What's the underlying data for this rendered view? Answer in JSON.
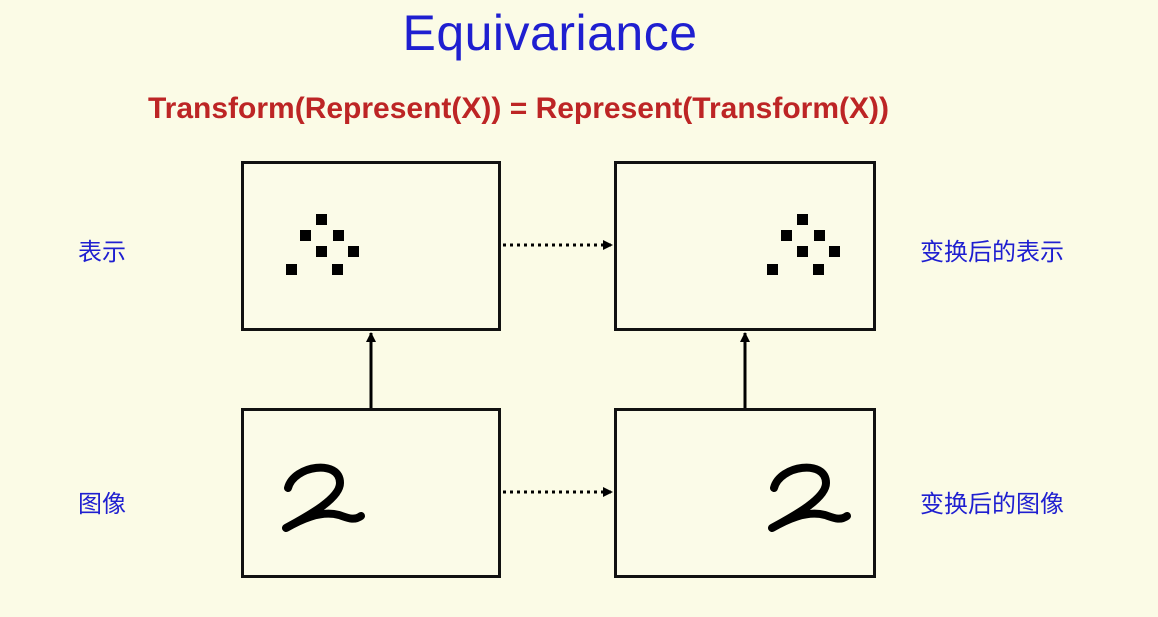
{
  "title": "Equivariance",
  "equation": "Transform(Represent(X)) = Represent(Transform(X))",
  "labels": {
    "representation": "表示",
    "transformed_representation": "变换后的表示",
    "image": "图像",
    "transformed_image": "变换后的图像"
  },
  "colors": {
    "title": "#1f1fd0",
    "equation": "#bd2525",
    "labels": "#1f1fd0",
    "background": "#fbfbe6"
  },
  "icons": {
    "representation_pattern": "dot-pattern-icon",
    "digit_image": "handwritten-digit-2-icon"
  }
}
